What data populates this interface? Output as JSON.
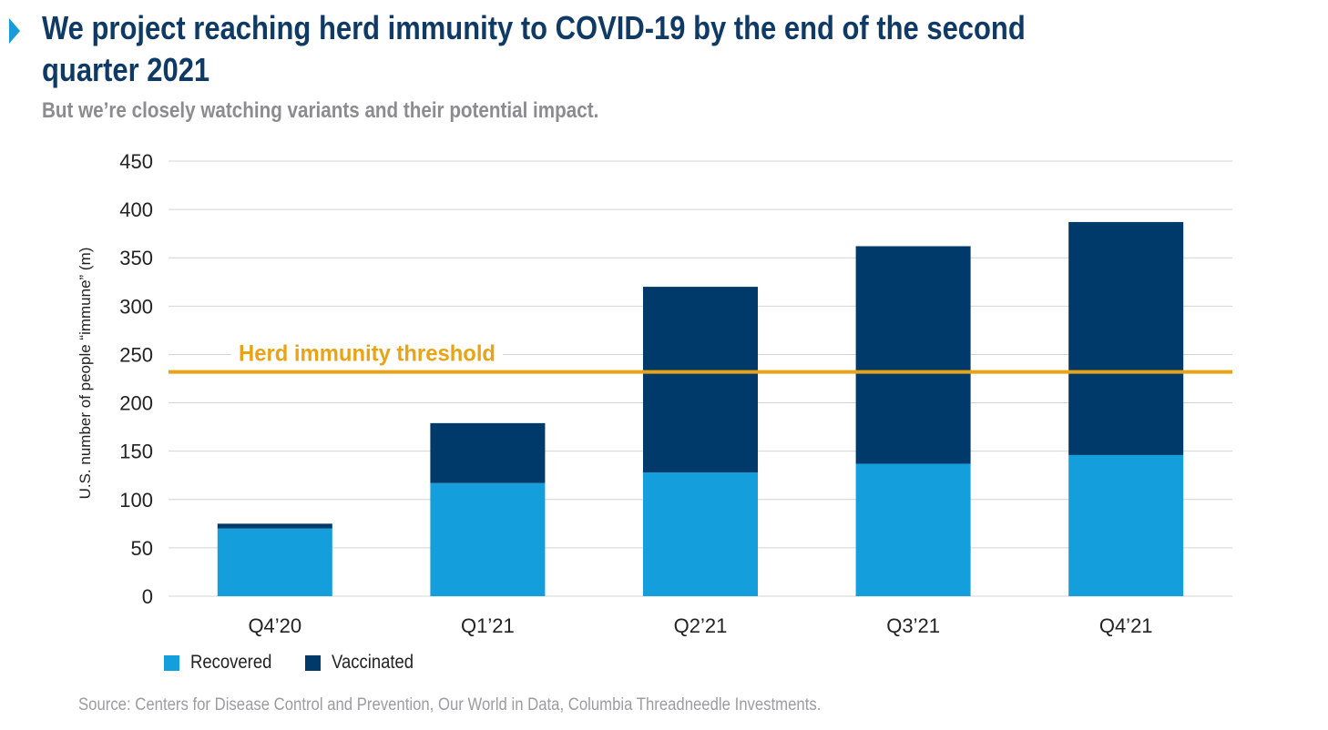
{
  "header": {
    "title": "We project reaching herd immunity to COVID-19 by the end of the second quarter 2021",
    "subtitle": "But we’re closely watching variants and their potential impact."
  },
  "source": "Source: Centers for Disease Control and Prevention, Our World in Data, Columbia Threadneedle Investments.",
  "colors": {
    "recovered": "#149fdc",
    "vaccinated": "#003a6b",
    "threshold": "#e8a317",
    "title": "#0f3a66",
    "marker": "#1a9ad9"
  },
  "chart_data": {
    "type": "bar",
    "stacked": true,
    "categories": [
      "Q4’20",
      "Q1’21",
      "Q2’21",
      "Q3’21",
      "Q4’21"
    ],
    "series": [
      {
        "name": "Recovered",
        "values": [
          70,
          117,
          128,
          137,
          146
        ]
      },
      {
        "name": "Vaccinated",
        "values": [
          5,
          62,
          192,
          225,
          241
        ]
      }
    ],
    "ylabel": "U.S. number of people “immune” (m)",
    "xlabel": "",
    "ylim": [
      0,
      450
    ],
    "yticks": [
      0,
      50,
      100,
      150,
      200,
      250,
      300,
      350,
      400,
      450
    ],
    "grid": true,
    "legend_position": "bottom-left",
    "threshold": {
      "label": "Herd immunity threshold",
      "value": 232
    }
  }
}
